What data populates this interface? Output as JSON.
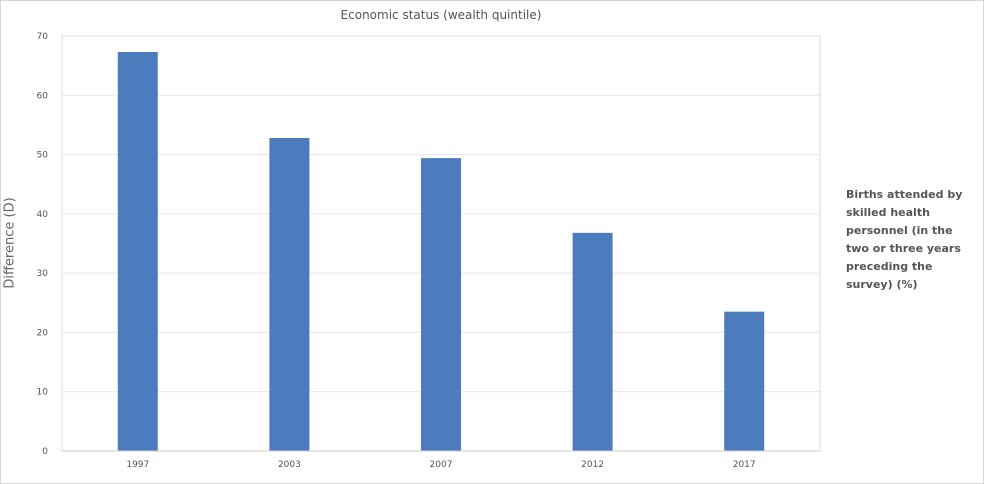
{
  "chart_data": {
    "type": "bar",
    "title": "Economic status (wealth quintile)",
    "ylabel": "Difference (D)",
    "xlabel": "",
    "categories": [
      "1997",
      "2003",
      "2007",
      "2012",
      "2017"
    ],
    "series": [
      {
        "name": "Births attended by skilled health personnel (in the two or three years preceding the survey) (%)",
        "values": [
          67.3,
          52.8,
          49.4,
          36.8,
          23.5
        ],
        "color": "#4d7cbe"
      }
    ],
    "ylim": [
      0,
      70
    ],
    "yticks": [
      0,
      10,
      20,
      30,
      40,
      50,
      60,
      70
    ],
    "grid": true,
    "legend_position": "right"
  }
}
